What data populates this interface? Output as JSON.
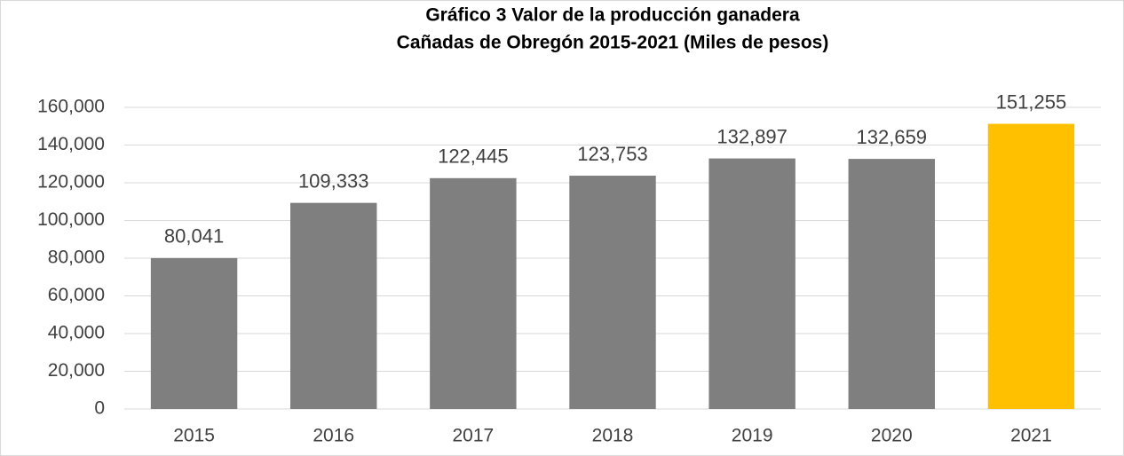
{
  "chart_data": {
    "type": "bar",
    "title": [
      "Gráfico 3 Valor de la producción ganadera",
      "Cañadas de Obregón 2015-2021 (Miles de pesos)"
    ],
    "categories": [
      "2015",
      "2016",
      "2017",
      "2018",
      "2019",
      "2020",
      "2021"
    ],
    "values": [
      80041,
      109333,
      122445,
      123753,
      132897,
      132659,
      151255
    ],
    "value_labels": [
      "80,041",
      "109,333",
      "122,445",
      "123,753",
      "132,897",
      "132,659",
      "151,255"
    ],
    "colors": [
      "#7f7f7f",
      "#7f7f7f",
      "#7f7f7f",
      "#7f7f7f",
      "#7f7f7f",
      "#7f7f7f",
      "#ffc000"
    ],
    "ylim": [
      0,
      160000
    ],
    "yticks": [
      0,
      {
        "value": 20000,
        "label": "20,000"
      },
      {
        "value": 40000,
        "label": "40,000"
      },
      {
        "value": 60000,
        "label": "60,000"
      },
      {
        "value": 80000,
        "label": "80,000"
      },
      {
        "value": 100000,
        "label": "100,000"
      },
      {
        "value": 120000,
        "label": "120,000"
      },
      {
        "value": 140000,
        "label": "140,000"
      },
      {
        "value": 160000,
        "label": "160,000"
      }
    ],
    "grid": true
  }
}
